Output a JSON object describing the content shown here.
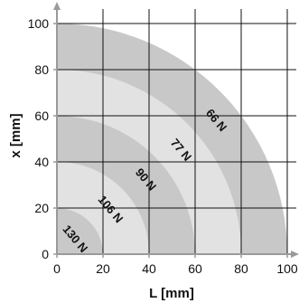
{
  "chart_data": {
    "type": "area",
    "title": "",
    "xlabel": "L [mm]",
    "ylabel": "x [mm]",
    "xlim": [
      0,
      100
    ],
    "ylim": [
      0,
      100
    ],
    "grid": true,
    "x_ticks": [
      "0",
      "20",
      "40",
      "60",
      "80",
      "100"
    ],
    "y_ticks": [
      "0",
      "20",
      "40",
      "60",
      "80",
      "100"
    ],
    "zones": [
      {
        "label": "130 N",
        "inner_radius": 0,
        "outer_radius": 20,
        "color": "#c8c8c8"
      },
      {
        "label": "106 N",
        "inner_radius": 20,
        "outer_radius": 40,
        "color": "#e2e2e2"
      },
      {
        "label": "90 N",
        "inner_radius": 40,
        "outer_radius": 60,
        "color": "#c8c8c8"
      },
      {
        "label": "77 N",
        "inner_radius": 60,
        "outer_radius": 80,
        "color": "#e2e2e2"
      },
      {
        "label": "66 N",
        "inner_radius": 80,
        "outer_radius": 100,
        "color": "#c8c8c8"
      }
    ],
    "colors": {
      "axis": "#9a9a9a",
      "grid": "#111111",
      "zone_dark": "#c8c8c8",
      "zone_light": "#e2e2e2"
    }
  }
}
